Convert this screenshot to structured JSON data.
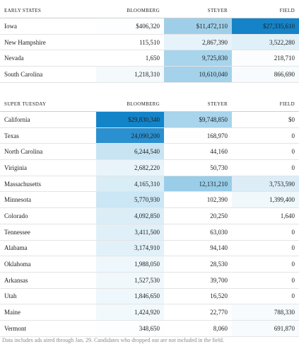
{
  "chart_data": [
    {
      "type": "table",
      "header": [
        "EARLY STATES",
        "BLOOMBERG",
        "STEYER",
        "FIELD"
      ],
      "rows": [
        {
          "state": "Iowa",
          "values": [
            "$406,320",
            "$11,472,110",
            "$27,335,610"
          ],
          "shades": [
            "#fdfeff",
            "#9fcfe8",
            "#1583c8"
          ]
        },
        {
          "state": "New Hampshire",
          "values": [
            "115,510",
            "2,867,390",
            "3,522,280"
          ],
          "shades": [
            "#ffffff",
            "#e6f3fa",
            "#e0f0f9"
          ]
        },
        {
          "state": "Nevada",
          "values": [
            "1,650",
            "9,725,830",
            "218,710"
          ],
          "shades": [
            "#ffffff",
            "#a8d4ec",
            "#fbfdfe"
          ]
        },
        {
          "state": "South Carolina",
          "values": [
            "1,218,310",
            "10,610,040",
            "866,690"
          ],
          "shades": [
            "#f4f9fc",
            "#a3d2ea",
            "#f7fbfd"
          ]
        }
      ]
    },
    {
      "type": "table",
      "header": [
        "SUPER TUESDAY",
        "BLOOMBERG",
        "STEYER",
        "FIELD"
      ],
      "rows": [
        {
          "state": "California",
          "values": [
            "$29,830,340",
            "$9,748,850",
            "$0"
          ],
          "shades": [
            "#1484c9",
            "#a8d4ec",
            "#ffffff"
          ]
        },
        {
          "state": "Texas",
          "values": [
            "24,090,200",
            "168,970",
            "0"
          ],
          "shades": [
            "#2b90cf",
            "#fefeff",
            "#ffffff"
          ]
        },
        {
          "state": "North Carolina",
          "values": [
            "6,244,540",
            "44,160",
            "0"
          ],
          "shades": [
            "#c8e4f3",
            "#ffffff",
            "#ffffff"
          ]
        },
        {
          "state": "Viriginia",
          "values": [
            "2,682,220",
            "50,730",
            "0"
          ],
          "shades": [
            "#e8f4fa",
            "#ffffff",
            "#ffffff"
          ]
        },
        {
          "state": "Massachusetts",
          "values": [
            "4,165,310",
            "12,131,210",
            "3,753,590"
          ],
          "shades": [
            "#d9edf7",
            "#99cde8",
            "#dcedf7"
          ]
        },
        {
          "state": "Minnesota",
          "values": [
            "5,770,930",
            "102,390",
            "1,399,400"
          ],
          "shades": [
            "#cbe6f4",
            "#ffffff",
            "#f0f8fb"
          ]
        },
        {
          "state": "Colorado",
          "values": [
            "4,092,850",
            "20,250",
            "1,640"
          ],
          "shades": [
            "#dbeef7",
            "#ffffff",
            "#ffffff"
          ]
        },
        {
          "state": "Tennessee",
          "values": [
            "3,411,500",
            "63,030",
            "0"
          ],
          "shades": [
            "#e0f0f9",
            "#ffffff",
            "#ffffff"
          ]
        },
        {
          "state": "Alabama",
          "values": [
            "3,174,910",
            "94,140",
            "0"
          ],
          "shades": [
            "#e2f1f9",
            "#ffffff",
            "#ffffff"
          ]
        },
        {
          "state": "Oklahoma",
          "values": [
            "1,988,050",
            "28,530",
            "0"
          ],
          "shades": [
            "#eef7fb",
            "#ffffff",
            "#ffffff"
          ]
        },
        {
          "state": "Arkansas",
          "values": [
            "1,527,530",
            "39,700",
            "0"
          ],
          "shades": [
            "#f1f8fc",
            "#ffffff",
            "#ffffff"
          ]
        },
        {
          "state": "Utah",
          "values": [
            "1,846,650",
            "16,520",
            "0"
          ],
          "shades": [
            "#eef7fb",
            "#ffffff",
            "#ffffff"
          ]
        },
        {
          "state": "Maine",
          "values": [
            "1,424,920",
            "22,770",
            "788,330"
          ],
          "shades": [
            "#f2f9fc",
            "#ffffff",
            "#f7fbfd"
          ]
        },
        {
          "state": "Vermont",
          "values": [
            "348,650",
            "8,060",
            "691,870"
          ],
          "shades": [
            "#fcfeff",
            "#ffffff",
            "#f8fbfd"
          ]
        }
      ]
    }
  ],
  "footnote": "Data includes ads aired through Jan. 29. Candidates who dropped out are not included in the field."
}
